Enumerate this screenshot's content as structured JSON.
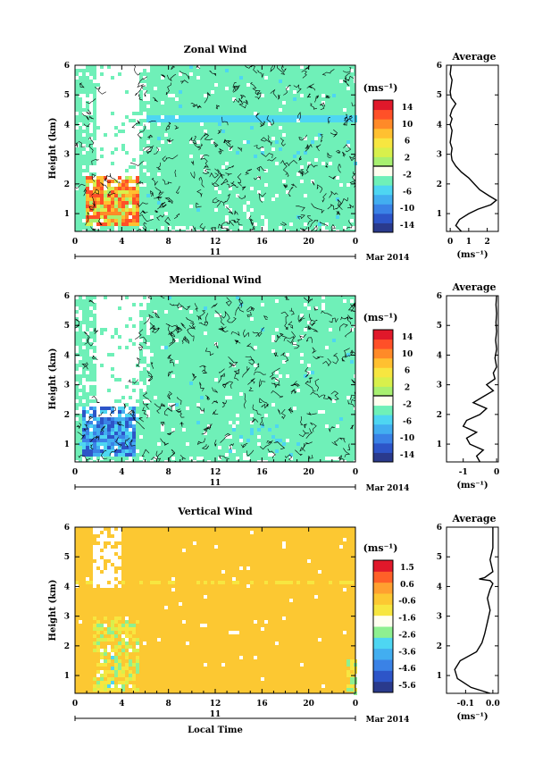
{
  "colors": {
    "background_field_zonal": "#6ff0b8",
    "background_field_vertical": "#fcc832",
    "axis": "#000000",
    "contour": "#000000",
    "colorbar_wind": [
      "#2a3a8c",
      "#2d55c8",
      "#3a82e6",
      "#42aef0",
      "#4ed6f2",
      "#6ff0b8",
      "#fffff0",
      "#a8f070",
      "#d8f04c",
      "#f7e640",
      "#ffc030",
      "#ff8a28",
      "#ff5028",
      "#e0182a"
    ],
    "colorbar_vertical": [
      "#2a3a8c",
      "#2d55c8",
      "#3a82e6",
      "#42aef0",
      "#4ed6f2",
      "#8ef090",
      "#fffff0",
      "#f7e640",
      "#fcc832",
      "#ffa030",
      "#ff6028",
      "#e0182a"
    ]
  },
  "chart_data": [
    {
      "type": "heatmap",
      "title": "Zonal Wind",
      "ylabel": "Height (km)",
      "xlabel": "",
      "x_ticks": [
        "0",
        "4",
        "8",
        "12",
        "16",
        "20",
        "0"
      ],
      "y_ticks": [
        "1",
        "2",
        "3",
        "4",
        "5",
        "6"
      ],
      "xlim": [
        0,
        24
      ],
      "ylim": [
        0.4,
        6
      ],
      "date_bar_label": "11",
      "date_label": "Mar 2014",
      "colorbar": {
        "unit": "(ms⁻¹)",
        "tick_labels": [
          "14",
          "10",
          "6",
          "2",
          "-2",
          "-6",
          "-10",
          "-14"
        ],
        "range": [
          -16,
          16
        ]
      }
    },
    {
      "type": "line",
      "title": "Average",
      "ylabel": "",
      "xlabel": "(ms⁻¹)",
      "x_ticks": [
        "0",
        "1",
        "2"
      ],
      "y_ticks": [
        "1",
        "2",
        "3",
        "4",
        "5",
        "6"
      ],
      "xlim": [
        -0.2,
        2.6
      ],
      "ylim": [
        0.4,
        6
      ],
      "series": [
        {
          "x": [
            0.6,
            0.3,
            0.5,
            1.0,
            1.5,
            2.2,
            2.5,
            2.1,
            1.6,
            1.3,
            1.0,
            0.6,
            0.3,
            0.1,
            0.05,
            0.1,
            0.0,
            0.05,
            0.1,
            0.0,
            0.05,
            0.1,
            0.0,
            0.1,
            0.3,
            0.05,
            0.0,
            0.05,
            0.1,
            0.0,
            0.05
          ],
          "y": [
            0.4,
            0.6,
            0.8,
            1.0,
            1.15,
            1.3,
            1.45,
            1.6,
            1.8,
            2.0,
            2.2,
            2.4,
            2.6,
            2.8,
            3.0,
            3.2,
            3.4,
            3.6,
            3.8,
            4.0,
            4.1,
            4.2,
            4.3,
            4.5,
            4.7,
            4.9,
            5.1,
            5.3,
            5.5,
            5.7,
            6.0
          ]
        }
      ]
    },
    {
      "type": "heatmap",
      "title": "Meridional Wind",
      "ylabel": "Height (km)",
      "xlabel": "",
      "x_ticks": [
        "0",
        "4",
        "8",
        "12",
        "16",
        "20",
        "0"
      ],
      "y_ticks": [
        "1",
        "2",
        "3",
        "4",
        "5",
        "6"
      ],
      "xlim": [
        0,
        24
      ],
      "ylim": [
        0.4,
        6
      ],
      "date_bar_label": "11",
      "date_label": "Mar 2014",
      "colorbar": {
        "unit": "(ms⁻¹)",
        "tick_labels": [
          "14",
          "10",
          "6",
          "2",
          "-2",
          "-6",
          "-10",
          "-14"
        ],
        "range": [
          -16,
          16
        ]
      }
    },
    {
      "type": "line",
      "title": "Average",
      "ylabel": "",
      "xlabel": "(ms⁻¹)",
      "x_ticks": [
        "-1",
        "0"
      ],
      "y_ticks": [
        "1",
        "2",
        "3",
        "4",
        "5",
        "6"
      ],
      "xlim": [
        -1.5,
        0.05
      ],
      "ylim": [
        0.4,
        6
      ],
      "series": [
        {
          "x": [
            -0.5,
            -0.6,
            -0.4,
            -0.8,
            -0.9,
            -0.6,
            -1.0,
            -0.9,
            -0.5,
            -0.3,
            -0.7,
            -0.4,
            -0.1,
            -0.3,
            -0.05,
            -0.1,
            0.0,
            -0.05,
            0.0,
            -0.03,
            0.0,
            -0.02,
            0.0,
            -0.02,
            0.0
          ],
          "y": [
            0.4,
            0.6,
            0.8,
            1.0,
            1.2,
            1.4,
            1.6,
            1.8,
            2.0,
            2.2,
            2.4,
            2.6,
            2.8,
            3.0,
            3.2,
            3.4,
            3.6,
            3.9,
            4.2,
            4.5,
            4.8,
            5.1,
            5.4,
            5.7,
            6.0
          ]
        }
      ]
    },
    {
      "type": "heatmap",
      "title": "Vertical Wind",
      "ylabel": "Height (km)",
      "xlabel": "Local Time",
      "x_ticks": [
        "0",
        "4",
        "8",
        "12",
        "16",
        "20",
        "0"
      ],
      "y_ticks": [
        "1",
        "2",
        "3",
        "4",
        "5",
        "6"
      ],
      "xlim": [
        0,
        24
      ],
      "ylim": [
        0.4,
        6
      ],
      "date_bar_label": "11",
      "date_label": "Mar 2014",
      "colorbar": {
        "unit": "(ms⁻¹)",
        "tick_labels": [
          "1.5",
          "0.6",
          "-0.6",
          "-1.6",
          "-2.6",
          "-3.6",
          "-4.6",
          "-5.6"
        ],
        "range": [
          -6,
          2
        ]
      }
    },
    {
      "type": "line",
      "title": "Average",
      "ylabel": "",
      "xlabel": "(ms⁻¹)",
      "x_ticks": [
        "-0.1",
        "0.0"
      ],
      "y_ticks": [
        "1",
        "2",
        "3",
        "4",
        "5",
        "6"
      ],
      "xlim": [
        -0.17,
        0.02
      ],
      "ylim": [
        0.4,
        6
      ],
      "series": [
        {
          "x": [
            -0.01,
            -0.08,
            -0.13,
            -0.14,
            -0.12,
            -0.06,
            -0.04,
            -0.03,
            -0.02,
            -0.01,
            -0.02,
            -0.01,
            0.0,
            -0.01,
            -0.05,
            -0.03,
            0.0,
            -0.01,
            0.0,
            0.0,
            0.0
          ],
          "y": [
            0.4,
            0.6,
            0.9,
            1.2,
            1.5,
            1.8,
            2.1,
            2.4,
            2.8,
            3.2,
            3.6,
            3.9,
            4.1,
            4.2,
            4.25,
            4.3,
            4.5,
            4.9,
            5.3,
            5.7,
            6.0
          ]
        }
      ]
    }
  ]
}
